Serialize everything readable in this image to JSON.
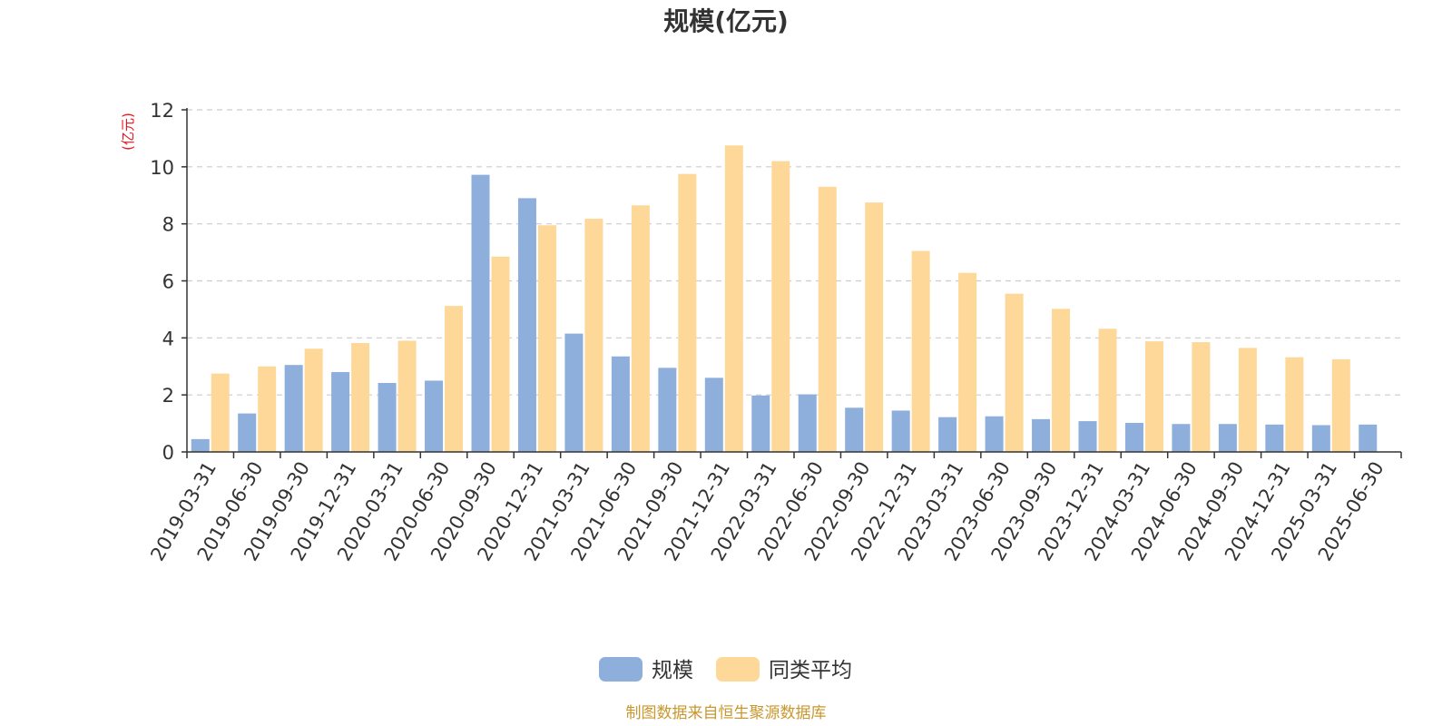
{
  "chart_data": {
    "type": "bar",
    "title": "规模(亿元)",
    "ylabel": "(亿元)",
    "xlabel": "",
    "ylim": [
      0,
      12
    ],
    "yticks": [
      0,
      2,
      4,
      6,
      8,
      10,
      12
    ],
    "grid": true,
    "legend_position": "bottom-center",
    "categories": [
      "2019-03-31",
      "2019-06-30",
      "2019-09-30",
      "2019-12-31",
      "2020-03-31",
      "2020-06-30",
      "2020-09-30",
      "2020-12-31",
      "2021-03-31",
      "2021-06-30",
      "2021-09-30",
      "2021-12-31",
      "2022-03-31",
      "2022-06-30",
      "2022-09-30",
      "2022-12-31",
      "2023-03-31",
      "2023-06-30",
      "2023-09-30",
      "2023-12-31",
      "2024-03-31",
      "2024-06-30",
      "2024-09-30",
      "2024-12-31",
      "2025-03-31",
      "2025-06-30"
    ],
    "series": [
      {
        "name": "规模",
        "color": "#8eaedb",
        "values": [
          0.45,
          1.35,
          3.05,
          2.8,
          2.42,
          2.5,
          9.72,
          8.9,
          4.15,
          3.35,
          2.95,
          2.6,
          1.98,
          2.02,
          1.55,
          1.45,
          1.22,
          1.25,
          1.15,
          1.08,
          1.02,
          0.98,
          0.98,
          0.96,
          0.94,
          0.96
        ]
      },
      {
        "name": "同类平均",
        "color": "#fed898",
        "values": [
          2.75,
          3.0,
          3.62,
          3.82,
          3.9,
          5.12,
          6.85,
          7.95,
          8.18,
          8.65,
          9.75,
          10.75,
          10.2,
          9.3,
          8.75,
          7.05,
          6.28,
          5.55,
          5.02,
          4.32,
          3.88,
          3.85,
          3.65,
          3.32,
          3.25,
          null
        ]
      }
    ],
    "source": "制图数据来自恒生聚源数据库"
  }
}
